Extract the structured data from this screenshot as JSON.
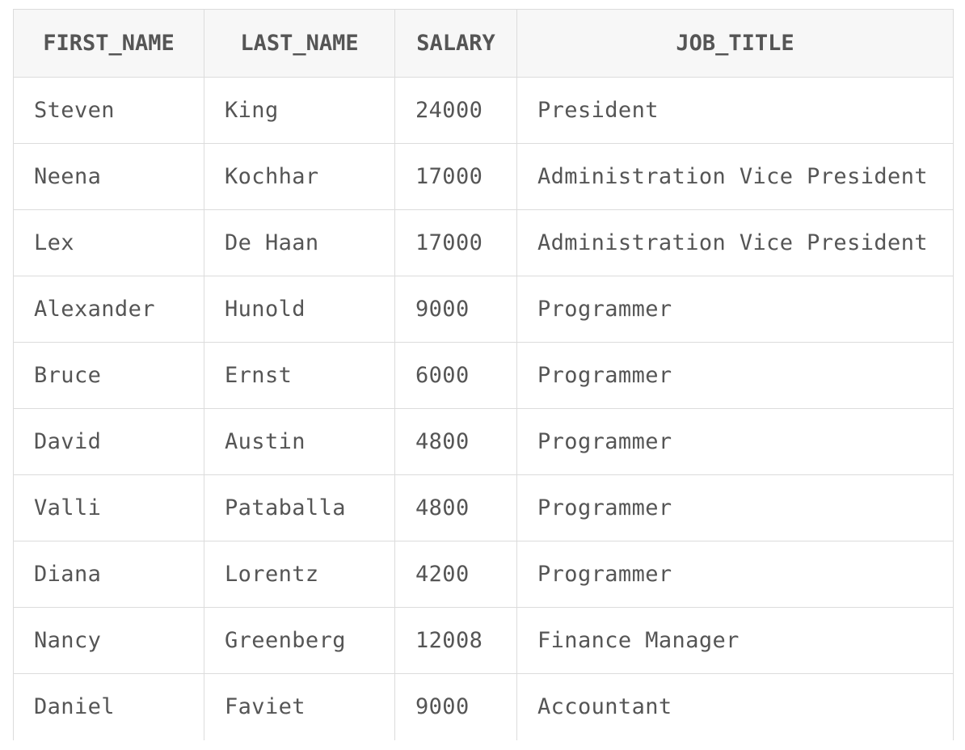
{
  "table": {
    "headers": [
      "FIRST_NAME",
      "LAST_NAME",
      "SALARY",
      "JOB_TITLE"
    ],
    "rows": [
      [
        "Steven",
        "King",
        "24000",
        "President"
      ],
      [
        "Neena",
        "Kochhar",
        "17000",
        "Administration Vice President"
      ],
      [
        "Lex",
        "De Haan",
        "17000",
        "Administration Vice President"
      ],
      [
        "Alexander",
        "Hunold",
        "9000",
        "Programmer"
      ],
      [
        "Bruce",
        "Ernst",
        "6000",
        "Programmer"
      ],
      [
        "David",
        "Austin",
        "4800",
        "Programmer"
      ],
      [
        "Valli",
        "Pataballa",
        "4800",
        "Programmer"
      ],
      [
        "Diana",
        "Lorentz",
        "4200",
        "Programmer"
      ],
      [
        "Nancy",
        "Greenberg",
        "12008",
        "Finance Manager"
      ],
      [
        "Daniel",
        "Faviet",
        "9000",
        "Accountant"
      ]
    ]
  }
}
